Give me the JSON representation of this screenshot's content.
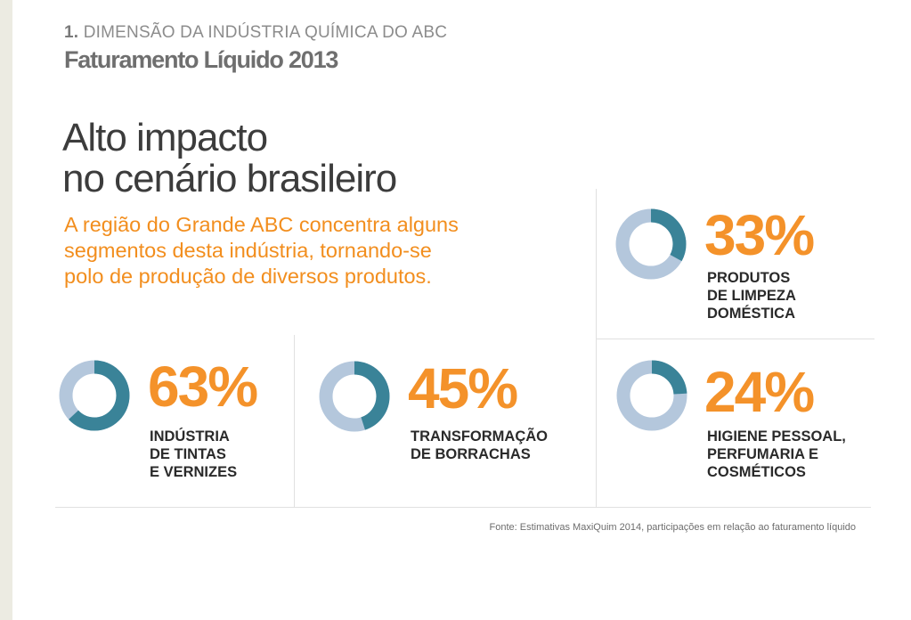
{
  "header": {
    "section_number": "1.",
    "section_title": "DIMENSÃO DA INDÚSTRIA QUÍMICA DO ABC",
    "subtitle": "Faturamento Líquido 2013"
  },
  "headline": {
    "line1": "Alto impacto",
    "line2": "no cenário brasileiro"
  },
  "lead": {
    "line1": "A região do Grande ABC concentra alguns",
    "line2": "segmentos desta indústria, tornando-se",
    "line3": "polo de produção de diversos produtos."
  },
  "colors": {
    "share": "#3a8398",
    "rest": "#b4c7dc",
    "accent": "#f4922a"
  },
  "chart_data": {
    "type": "pie",
    "categories": [
      "INDÚSTRIA DE TINTAS E VERNIZES",
      "TRANSFORMAÇÃO DE BORRACHAS",
      "PRODUTOS DE LIMPEZA DOMÉSTICA",
      "HIGIENE PESSOAL, PERFUMARIA E COSMÉTICOS"
    ],
    "values": [
      63,
      45,
      33,
      24
    ],
    "unit": "%",
    "items": [
      {
        "value": 63,
        "label": "63%",
        "caption": [
          "INDÚSTRIA",
          "DE TINTAS",
          "E VERNIZES"
        ]
      },
      {
        "value": 45,
        "label": "45%",
        "caption": [
          "TRANSFORMAÇÃO",
          "DE BORRACHAS"
        ]
      },
      {
        "value": 33,
        "label": "33%",
        "caption": [
          "PRODUTOS",
          "DE LIMPEZA",
          "DOMÉSTICA"
        ]
      },
      {
        "value": 24,
        "label": "24%",
        "caption": [
          "HIGIENE PESSOAL,",
          "PERFUMARIA E",
          "COSMÉTICOS"
        ]
      }
    ]
  },
  "source": "Fonte: Estimativas MaxiQuim 2014, participações em relação ao faturamento líquido"
}
